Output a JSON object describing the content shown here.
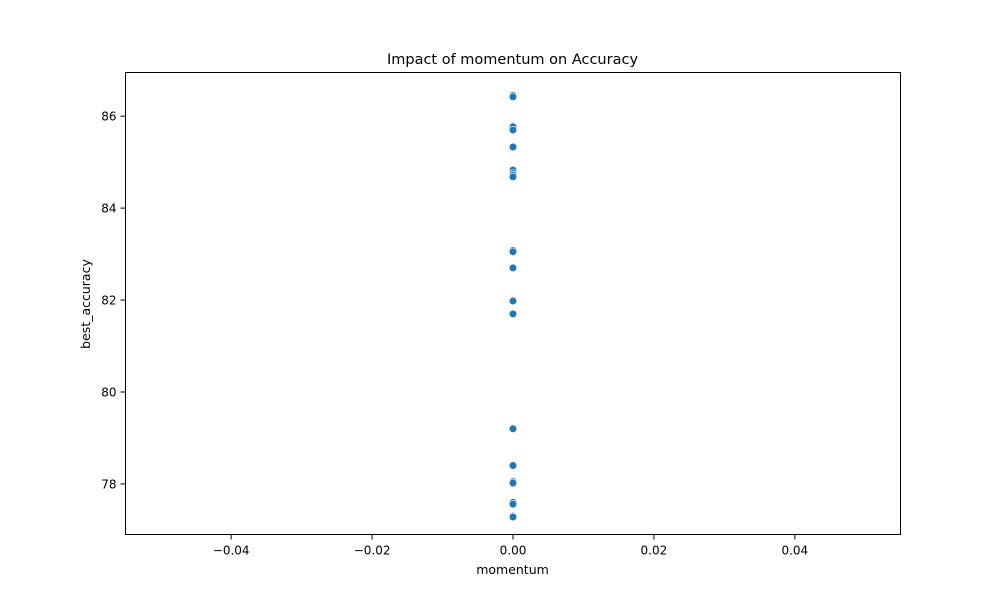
{
  "chart_data": {
    "type": "scatter",
    "title": "Impact of momentum on Accuracy",
    "xlabel": "momentum",
    "ylabel": "best_accuracy",
    "xlim": [
      -0.055,
      0.055
    ],
    "ylim": [
      76.9,
      86.95
    ],
    "xticks": [
      -0.04,
      -0.02,
      0.0,
      0.02,
      0.04
    ],
    "xtick_labels": [
      "−0.04",
      "−0.02",
      "0.00",
      "0.02",
      "0.04"
    ],
    "yticks": [
      78,
      80,
      82,
      84,
      86
    ],
    "ytick_labels": [
      "78",
      "80",
      "82",
      "84",
      "86"
    ],
    "grid": false,
    "legend": "none",
    "marker_color": "#1f77b4",
    "series": [
      {
        "x": [
          0,
          0,
          0,
          0,
          0,
          0,
          0,
          0,
          0,
          0,
          0,
          0,
          0,
          0,
          0,
          0,
          0,
          0,
          0,
          0,
          0,
          0
        ],
        "y": [
          86.45,
          86.42,
          85.77,
          85.7,
          85.33,
          84.83,
          84.76,
          84.72,
          84.68,
          83.08,
          83.05,
          82.7,
          81.98,
          81.7,
          79.2,
          78.4,
          78.05,
          78.02,
          77.6,
          77.56,
          77.3,
          77.28
        ]
      }
    ]
  }
}
